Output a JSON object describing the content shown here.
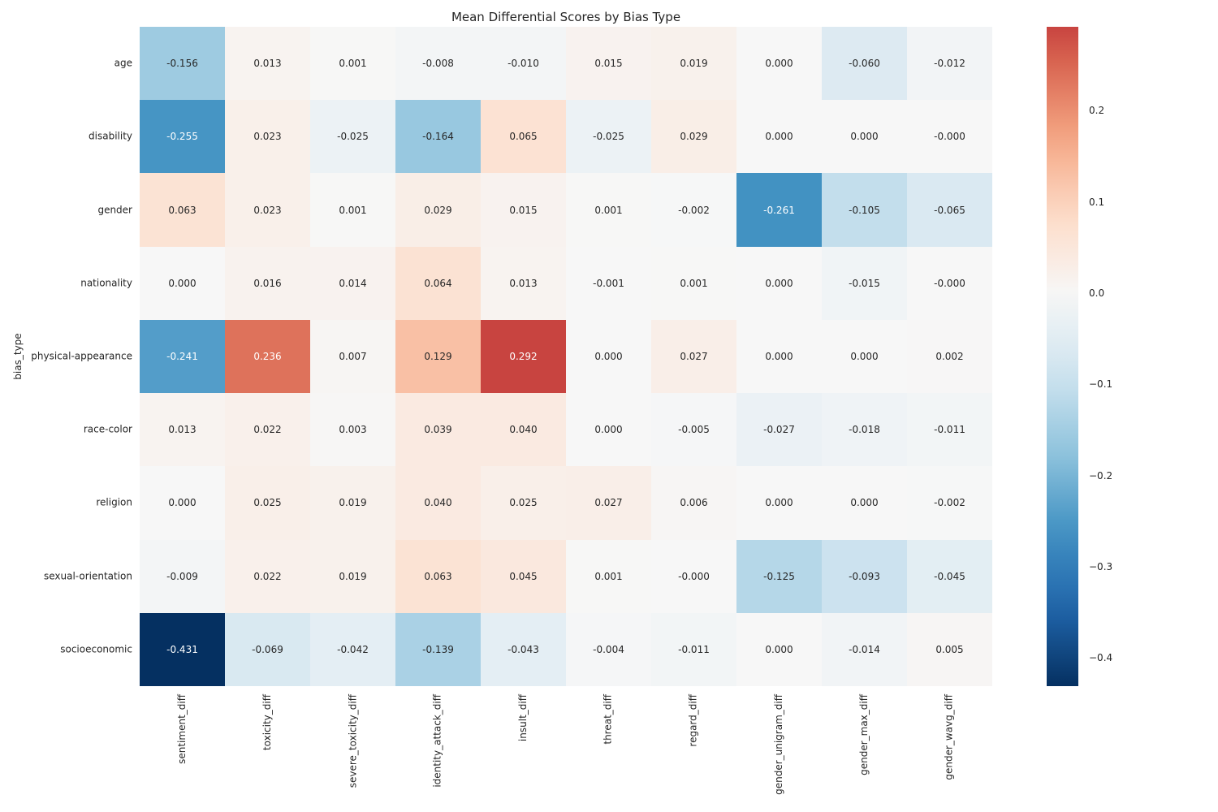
{
  "figure": {
    "background": "#ffffff",
    "text_color": "#262626"
  },
  "chart_data": {
    "type": "heatmap",
    "title": "Mean Differential Scores by Bias Type",
    "xlabel": "",
    "ylabel": "bias_type",
    "grid": false,
    "legend_position": "right-colorbar",
    "rows": [
      "age",
      "disability",
      "gender",
      "nationality",
      "physical-appearance",
      "race-color",
      "religion",
      "sexual-orientation",
      "socioeconomic"
    ],
    "columns": [
      "sentiment_diff",
      "toxicity_diff",
      "severe_toxicity_diff",
      "identity_attack_diff",
      "insult_diff",
      "threat_diff",
      "regard_diff",
      "gender_unigram_diff",
      "gender_max_diff",
      "gender_wavg_diff"
    ],
    "values": [
      [
        -0.156,
        0.013,
        0.001,
        -0.008,
        -0.01,
        0.015,
        0.019,
        0.0,
        -0.06,
        -0.012
      ],
      [
        -0.255,
        0.023,
        -0.025,
        -0.164,
        0.065,
        -0.025,
        0.029,
        0.0,
        0.0,
        0.0
      ],
      [
        0.063,
        0.023,
        0.001,
        0.029,
        0.015,
        0.001,
        -0.002,
        -0.261,
        -0.105,
        -0.065
      ],
      [
        0.0,
        0.016,
        0.014,
        0.064,
        0.013,
        -0.001,
        0.001,
        0.0,
        -0.015,
        0.0
      ],
      [
        -0.241,
        0.236,
        0.007,
        0.129,
        0.292,
        0.0,
        0.027,
        0.0,
        0.0,
        0.002
      ],
      [
        0.013,
        0.022,
        0.003,
        0.039,
        0.04,
        0.0,
        -0.005,
        -0.027,
        -0.018,
        -0.011
      ],
      [
        0.0,
        0.025,
        0.019,
        0.04,
        0.025,
        0.027,
        0.006,
        0.0,
        0.0,
        -0.002
      ],
      [
        -0.009,
        0.022,
        0.019,
        0.063,
        0.045,
        0.001,
        0.0,
        -0.125,
        -0.093,
        -0.045
      ],
      [
        -0.431,
        -0.069,
        -0.042,
        -0.139,
        -0.043,
        -0.004,
        -0.011,
        0.0,
        -0.014,
        0.005
      ]
    ],
    "cell_labels": [
      [
        "-0.156",
        "0.013",
        "0.001",
        "-0.008",
        "-0.010",
        "0.015",
        "0.019",
        "0.000",
        "-0.060",
        "-0.012"
      ],
      [
        "-0.255",
        "0.023",
        "-0.025",
        "-0.164",
        "0.065",
        "-0.025",
        "0.029",
        "0.000",
        "0.000",
        "-0.000"
      ],
      [
        "0.063",
        "0.023",
        "0.001",
        "0.029",
        "0.015",
        "0.001",
        "-0.002",
        "-0.261",
        "-0.105",
        "-0.065"
      ],
      [
        "0.000",
        "0.016",
        "0.014",
        "0.064",
        "0.013",
        "-0.001",
        "0.001",
        "0.000",
        "-0.015",
        "-0.000"
      ],
      [
        "-0.241",
        "0.236",
        "0.007",
        "0.129",
        "0.292",
        "0.000",
        "0.027",
        "0.000",
        "0.000",
        "0.002"
      ],
      [
        "0.013",
        "0.022",
        "0.003",
        "0.039",
        "0.040",
        "0.000",
        "-0.005",
        "-0.027",
        "-0.018",
        "-0.011"
      ],
      [
        "0.000",
        "0.025",
        "0.019",
        "0.040",
        "0.025",
        "0.027",
        "0.006",
        "0.000",
        "0.000",
        "-0.002"
      ],
      [
        "-0.009",
        "0.022",
        "0.019",
        "0.063",
        "0.045",
        "0.001",
        "-0.000",
        "-0.125",
        "-0.093",
        "-0.045"
      ],
      [
        "-0.431",
        "-0.069",
        "-0.042",
        "-0.139",
        "-0.043",
        "-0.004",
        "-0.011",
        "0.000",
        "-0.014",
        "0.005"
      ]
    ],
    "colormap": "RdBu_r",
    "colormap_stops": [
      "#053061",
      "#2166ac",
      "#4393c3",
      "#92c5de",
      "#d1e5f0",
      "#f7f7f7",
      "#fddbc7",
      "#f4a582",
      "#d6604d",
      "#b2182b",
      "#67001f"
    ],
    "center": 0,
    "vmin": -0.431,
    "vmax": 0.292,
    "annotation_dark_color": "#262626",
    "annotation_light_color": "#ffffff",
    "colorbar_ticks": [
      {
        "value": 0.2,
        "label": "0.2"
      },
      {
        "value": 0.1,
        "label": "0.1"
      },
      {
        "value": 0.0,
        "label": "0.0"
      },
      {
        "value": -0.1,
        "label": "−0.1"
      },
      {
        "value": -0.2,
        "label": "−0.2"
      },
      {
        "value": -0.3,
        "label": "−0.3"
      },
      {
        "value": -0.4,
        "label": "−0.4"
      }
    ]
  }
}
